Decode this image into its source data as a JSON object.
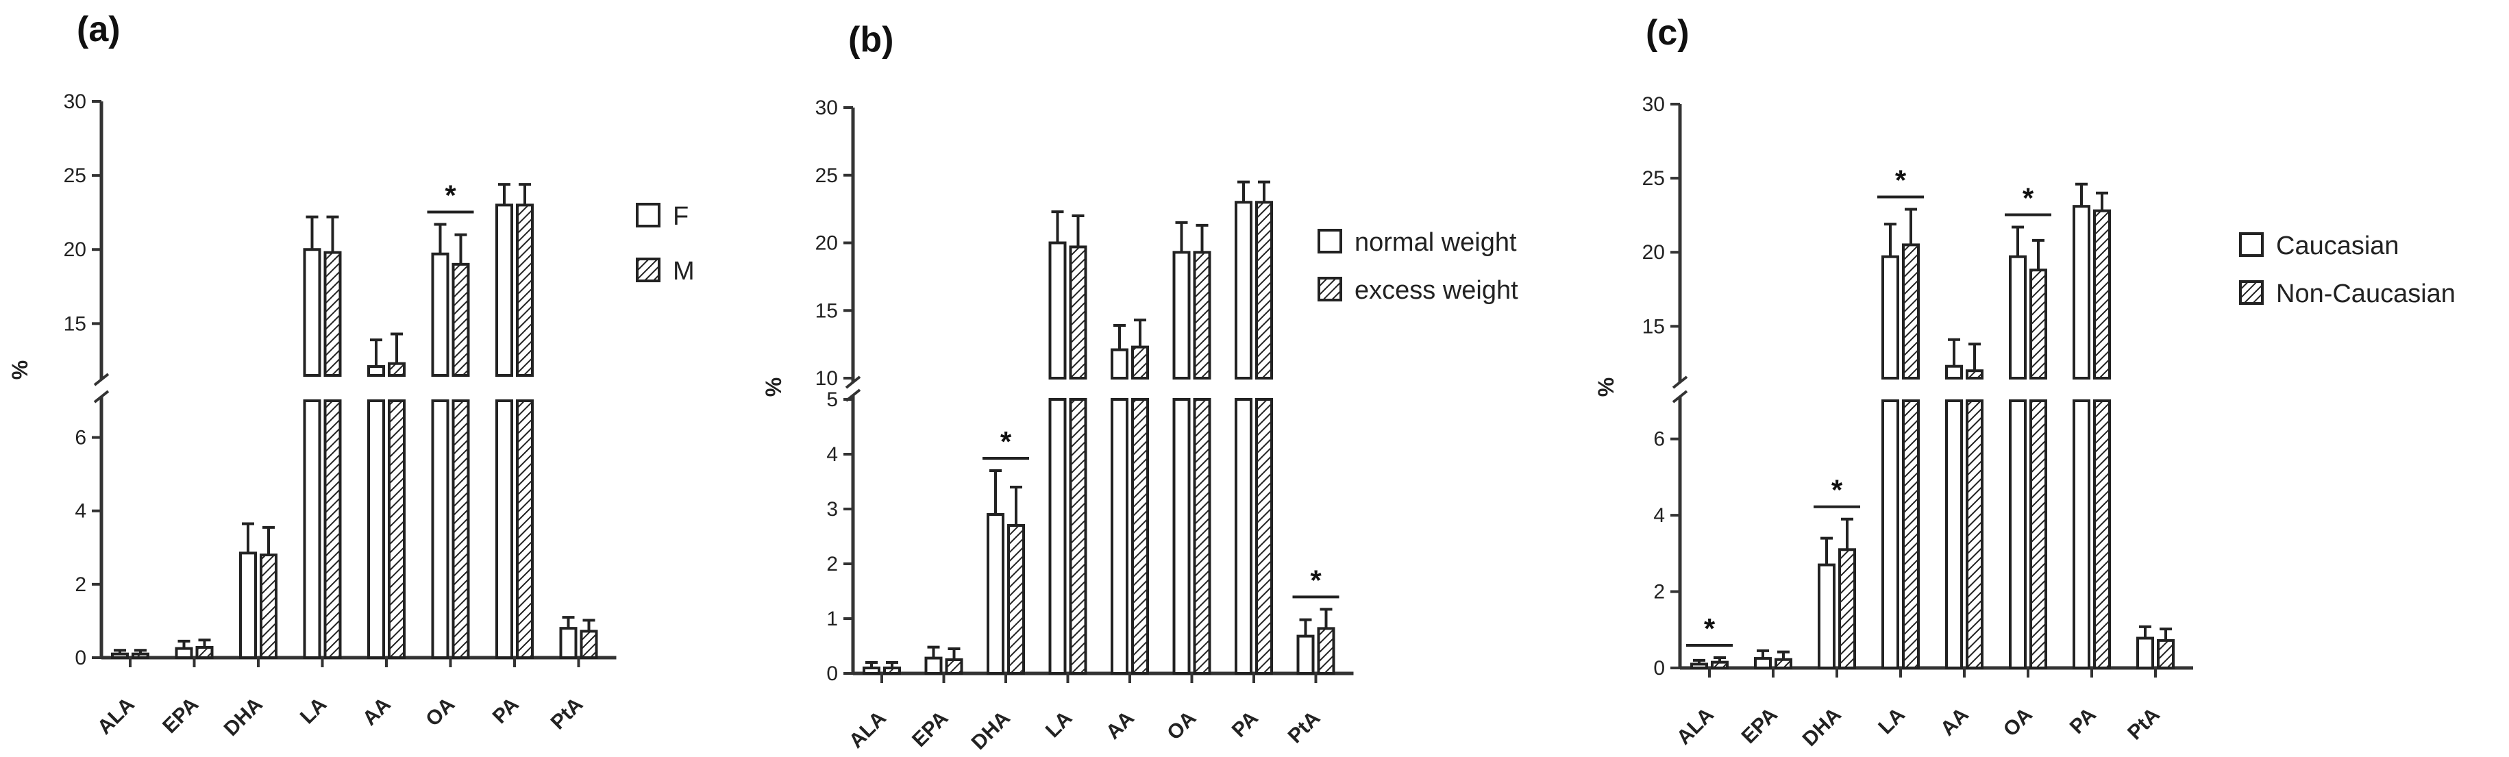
{
  "chart_data": [
    {
      "panel_label": "(a)",
      "type": "bar",
      "categories": [
        "ALA",
        "EPA",
        "DHA",
        "LA",
        "AA",
        "OA",
        "PA",
        "PtA"
      ],
      "ylabel": "%",
      "axis_break": true,
      "lower_range": [
        0,
        7
      ],
      "upper_range": [
        11.5,
        30
      ],
      "lower_ticks": [
        "0",
        "2",
        "4",
        "6"
      ],
      "upper_ticks": [
        "15",
        "20",
        "25",
        "30"
      ],
      "series": [
        {
          "name": "F",
          "pattern": "open",
          "values": [
            0.1,
            0.25,
            2.85,
            20.0,
            12.1,
            19.7,
            23.0,
            0.8
          ],
          "errors": [
            0.1,
            0.2,
            0.8,
            2.2,
            1.8,
            2.0,
            1.4,
            0.3
          ]
        },
        {
          "name": "M",
          "pattern": "hatched",
          "values": [
            0.1,
            0.28,
            2.8,
            19.8,
            12.3,
            19.0,
            23.0,
            0.72
          ],
          "errors": [
            0.1,
            0.2,
            0.75,
            2.4,
            2.0,
            2.0,
            1.4,
            0.3
          ]
        }
      ],
      "significance": [
        {
          "category": "OA",
          "label": "*"
        }
      ],
      "legend": "right"
    },
    {
      "panel_label": "(b)",
      "type": "bar",
      "categories": [
        "ALA",
        "EPA",
        "DHA",
        "LA",
        "AA",
        "OA",
        "PA",
        "PtA"
      ],
      "ylabel": "%",
      "axis_break": true,
      "lower_range": [
        0,
        5
      ],
      "upper_range": [
        10,
        30
      ],
      "lower_ticks": [
        "0",
        "1",
        "2",
        "3",
        "4",
        "5"
      ],
      "upper_ticks": [
        "10",
        "15",
        "20",
        "25",
        "30"
      ],
      "series": [
        {
          "name": "normal weight",
          "pattern": "open",
          "values": [
            0.1,
            0.28,
            2.9,
            20.0,
            12.1,
            19.3,
            23.0,
            0.68
          ],
          "errors": [
            0.1,
            0.2,
            0.8,
            2.3,
            1.8,
            2.2,
            1.5,
            0.3
          ]
        },
        {
          "name": "excess weight",
          "pattern": "hatched",
          "values": [
            0.1,
            0.25,
            2.7,
            19.7,
            12.3,
            19.3,
            23.0,
            0.82
          ],
          "errors": [
            0.1,
            0.2,
            0.7,
            2.3,
            2.0,
            2.0,
            1.5,
            0.35
          ]
        }
      ],
      "significance": [
        {
          "category": "DHA",
          "label": "*"
        },
        {
          "category": "PtA",
          "label": "*"
        }
      ],
      "legend": "right"
    },
    {
      "panel_label": "(c)",
      "type": "bar",
      "categories": [
        "ALA",
        "EPA",
        "DHA",
        "LA",
        "AA",
        "OA",
        "PA",
        "PtA"
      ],
      "ylabel": "%",
      "axis_break": true,
      "lower_range": [
        0,
        7
      ],
      "upper_range": [
        11.5,
        30
      ],
      "lower_ticks": [
        "0",
        "2",
        "4",
        "6"
      ],
      "upper_ticks": [
        "15",
        "20",
        "25",
        "30"
      ],
      "series": [
        {
          "name": "Caucasian",
          "pattern": "open",
          "values": [
            0.1,
            0.25,
            2.7,
            19.7,
            12.3,
            19.7,
            23.1,
            0.78
          ],
          "errors": [
            0.1,
            0.2,
            0.7,
            2.2,
            1.8,
            2.0,
            1.5,
            0.3
          ]
        },
        {
          "name": "Non-Caucasian",
          "pattern": "hatched",
          "values": [
            0.15,
            0.22,
            3.1,
            20.5,
            12.0,
            18.8,
            22.8,
            0.72
          ],
          "errors": [
            0.12,
            0.2,
            0.8,
            2.4,
            1.8,
            2.0,
            1.2,
            0.3
          ]
        }
      ],
      "significance": [
        {
          "category": "ALA",
          "label": "*"
        },
        {
          "category": "DHA",
          "label": "*"
        },
        {
          "category": "LA",
          "label": "*"
        },
        {
          "category": "OA",
          "label": "*"
        }
      ],
      "legend": "right"
    }
  ]
}
